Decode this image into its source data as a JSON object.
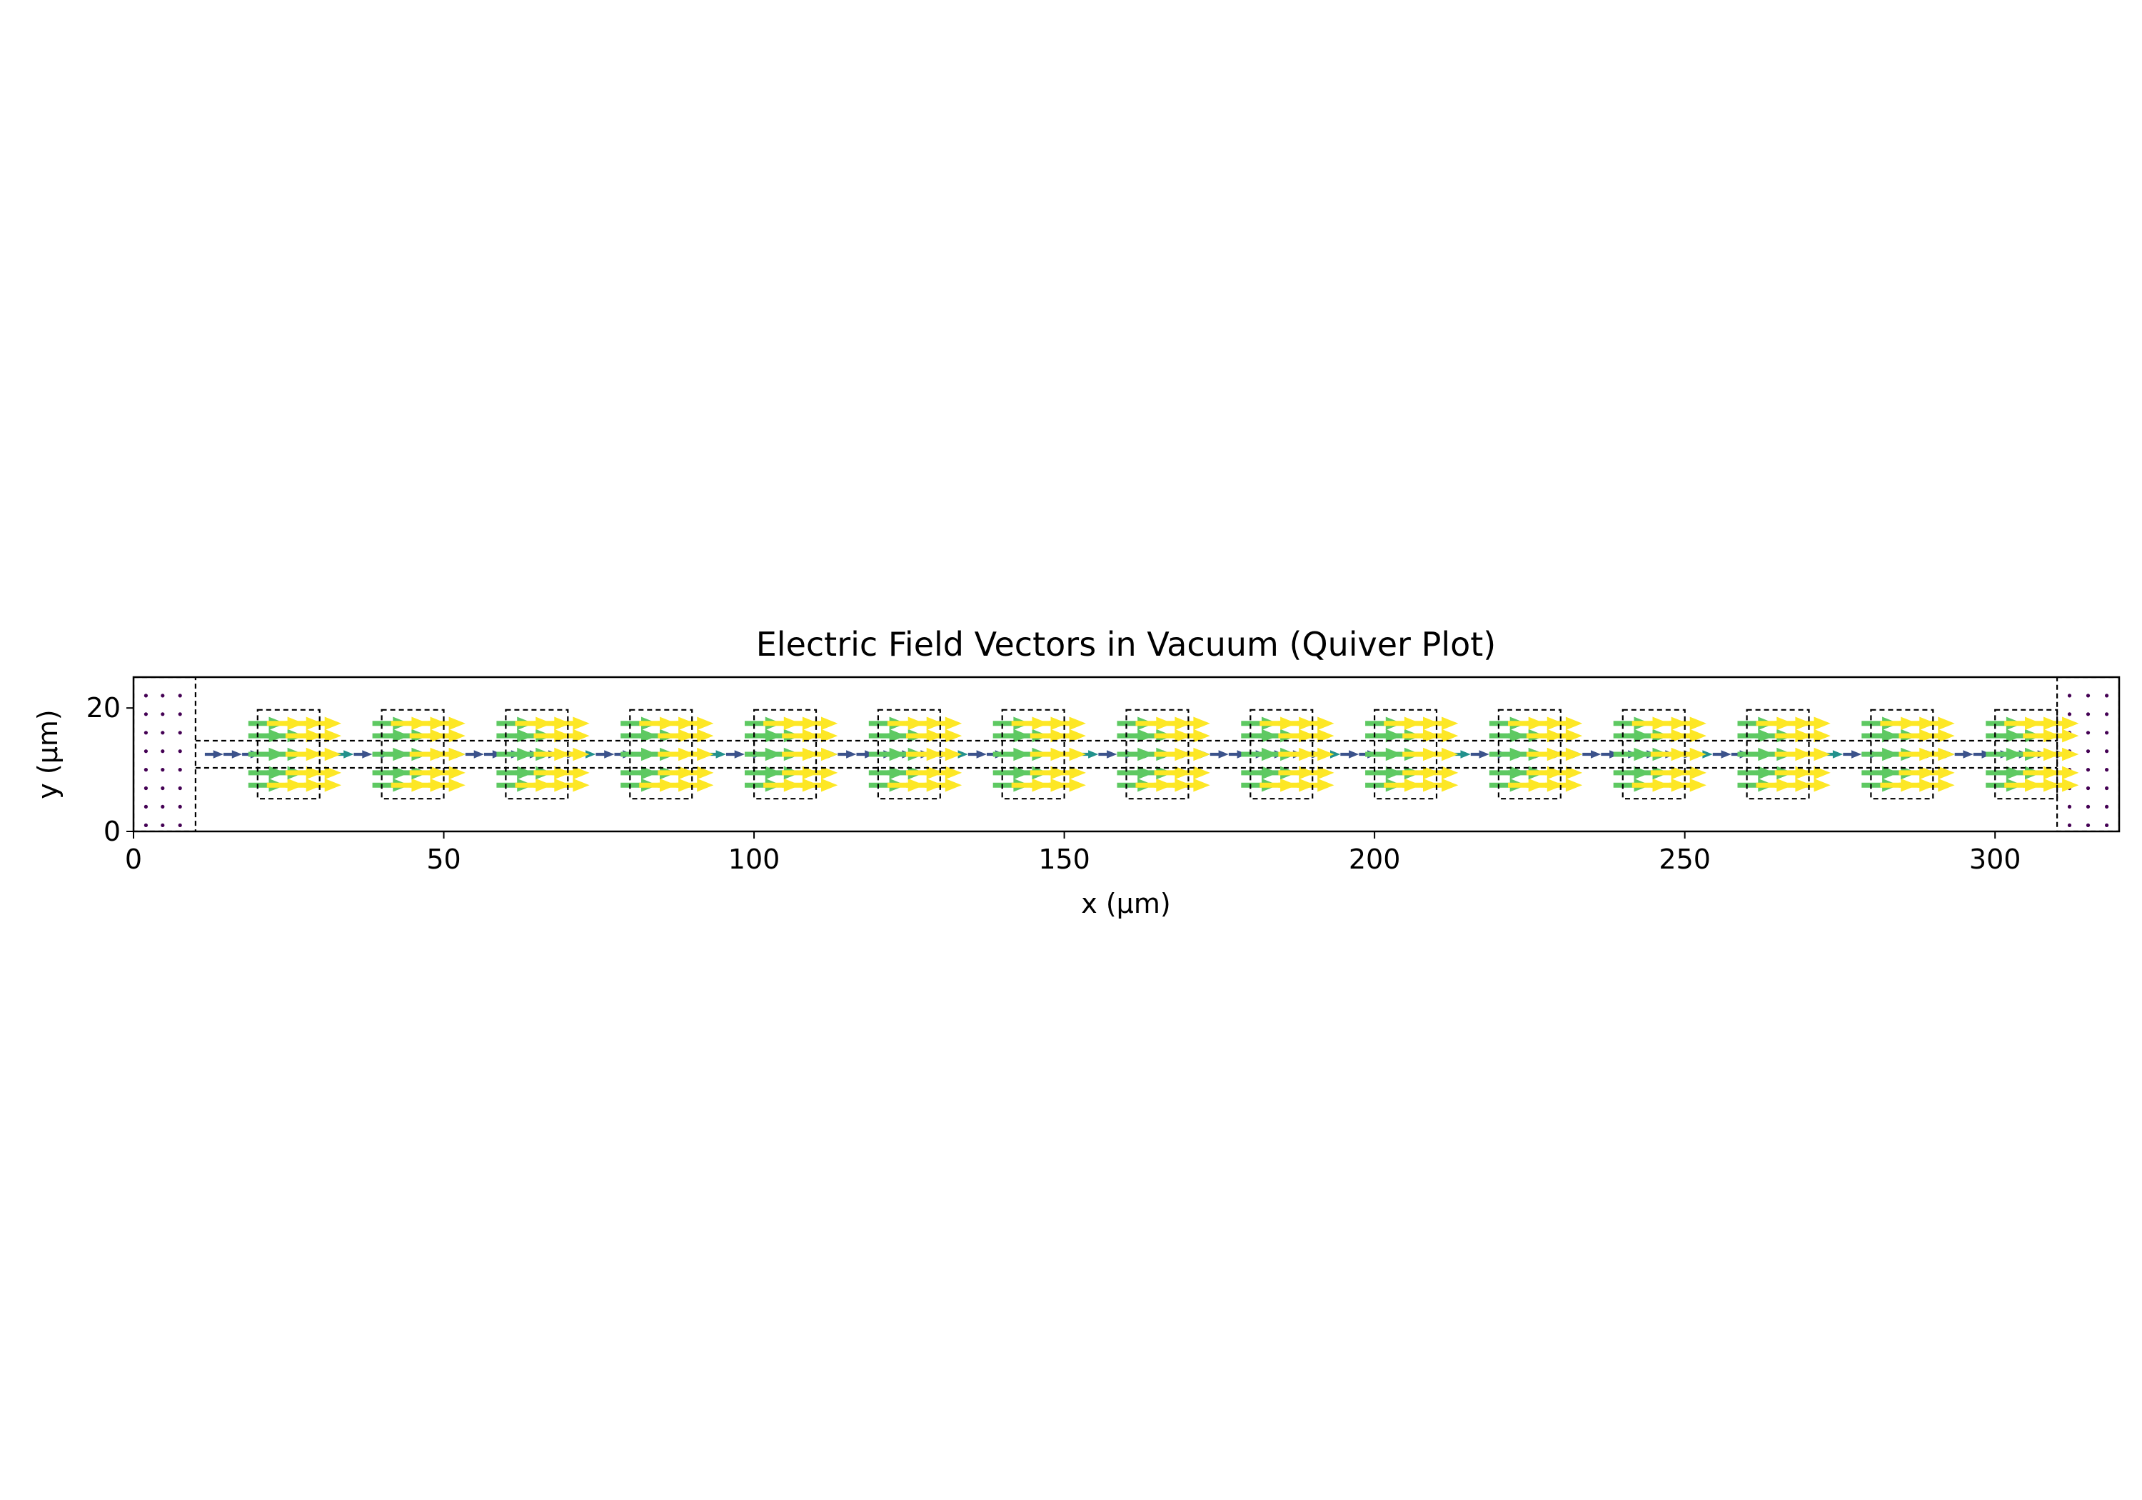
{
  "chart_data": {
    "type": "quiver",
    "title": "Electric Field Vectors in Vacuum (Quiver Plot)",
    "xlabel": "x (µm)",
    "ylabel": "y (µm)",
    "xlim": [
      0,
      320
    ],
    "ylim": [
      0,
      25
    ],
    "xticks": [
      0,
      50,
      100,
      150,
      200,
      250,
      300
    ],
    "yticks": [
      0,
      20
    ],
    "grid": false,
    "legend": "none",
    "colormap": [
      "#440154",
      "#3b528b",
      "#21918c",
      "#5ec962",
      "#fde725"
    ],
    "vector_direction": "+x",
    "left_electrode": {
      "x": [
        0,
        10
      ],
      "y": [
        0,
        25
      ]
    },
    "right_electrode": {
      "x": [
        310,
        320
      ],
      "y": [
        0,
        25
      ]
    },
    "channel": {
      "x": [
        10,
        310
      ],
      "y": [
        10.3,
        14.7
      ]
    },
    "chambers": [
      {
        "x": [
          20,
          30
        ],
        "y": [
          5.3,
          19.7
        ]
      },
      {
        "x": [
          40,
          50
        ],
        "y": [
          5.3,
          19.7
        ]
      },
      {
        "x": [
          60,
          70
        ],
        "y": [
          5.3,
          19.7
        ]
      },
      {
        "x": [
          80,
          90
        ],
        "y": [
          5.3,
          19.7
        ]
      },
      {
        "x": [
          100,
          110
        ],
        "y": [
          5.3,
          19.7
        ]
      },
      {
        "x": [
          120,
          130
        ],
        "y": [
          5.3,
          19.7
        ]
      },
      {
        "x": [
          140,
          150
        ],
        "y": [
          5.3,
          19.7
        ]
      },
      {
        "x": [
          160,
          170
        ],
        "y": [
          5.3,
          19.7
        ]
      },
      {
        "x": [
          180,
          190
        ],
        "y": [
          5.3,
          19.7
        ]
      },
      {
        "x": [
          200,
          210
        ],
        "y": [
          5.3,
          19.7
        ]
      },
      {
        "x": [
          220,
          230
        ],
        "y": [
          5.3,
          19.7
        ]
      },
      {
        "x": [
          240,
          250
        ],
        "y": [
          5.3,
          19.7
        ]
      },
      {
        "x": [
          260,
          270
        ],
        "y": [
          5.3,
          19.7
        ]
      },
      {
        "x": [
          280,
          290
        ],
        "y": [
          5.3,
          19.7
        ]
      },
      {
        "x": [
          300,
          310
        ],
        "y": [
          5.3,
          19.7
        ]
      }
    ],
    "chamber_vector_rows_y": [
      7.5,
      9.5,
      12.5,
      15.5,
      17.5
    ],
    "channel_vector_row_y": 12.5,
    "electrode_dot_rows_y": [
      1,
      4,
      7,
      10,
      13,
      16,
      19,
      22
    ],
    "left_electrode_dot_x": [
      2,
      4.7,
      7.5
    ],
    "right_electrode_dot_x": [
      312,
      315,
      318
    ]
  }
}
